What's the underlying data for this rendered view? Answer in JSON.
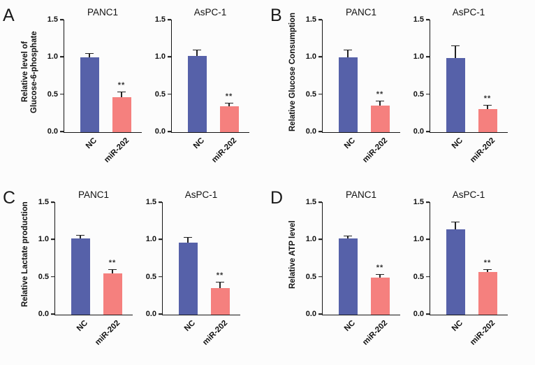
{
  "figure": {
    "background": "#fcfcfc"
  },
  "colors": {
    "nc_bar": "#5661A9",
    "treated_bar": "#F5807E",
    "error_bar": "#222222",
    "axis": "#141414"
  },
  "chart_data": {
    "type": "bar",
    "ylim": [
      0,
      1.5
    ],
    "yticks": [
      0,
      0.5,
      1.0,
      1.5
    ],
    "categories": [
      "NC",
      "miR-202"
    ],
    "grid": false,
    "legend": "none",
    "panels": [
      {
        "label": "A",
        "ylabel": [
          "Relative level of",
          "Glucose-6-phosphate"
        ],
        "charts": [
          {
            "title": "PANC1",
            "values": [
              1.0,
              0.47
            ],
            "errors": [
              0.06,
              0.07
            ],
            "significance": [
              null,
              "**"
            ]
          },
          {
            "title": "AsPC-1",
            "values": [
              1.02,
              0.35
            ],
            "errors": [
              0.09,
              0.04
            ],
            "significance": [
              null,
              "**"
            ]
          }
        ]
      },
      {
        "label": "B",
        "ylabel": [
          "Relative Glucose Consumption"
        ],
        "charts": [
          {
            "title": "PANC1",
            "values": [
              1.0,
              0.36
            ],
            "errors": [
              0.11,
              0.06
            ],
            "significance": [
              null,
              "**"
            ]
          },
          {
            "title": "AsPC-1",
            "values": [
              0.99,
              0.31
            ],
            "errors": [
              0.17,
              0.06
            ],
            "significance": [
              null,
              "**"
            ]
          }
        ]
      },
      {
        "label": "C",
        "ylabel": [
          "Relative Lactate production"
        ],
        "charts": [
          {
            "title": "PANC1",
            "values": [
              1.02,
              0.55
            ],
            "errors": [
              0.05,
              0.06
            ],
            "significance": [
              null,
              "**"
            ]
          },
          {
            "title": "AsPC-1",
            "values": [
              0.97,
              0.36
            ],
            "errors": [
              0.07,
              0.08
            ],
            "significance": [
              null,
              "**"
            ]
          }
        ]
      },
      {
        "label": "D",
        "ylabel": [
          "Relative ATP level"
        ],
        "charts": [
          {
            "title": "PANC1",
            "values": [
              1.02,
              0.5
            ],
            "errors": [
              0.04,
              0.04
            ],
            "significance": [
              null,
              "**"
            ]
          },
          {
            "title": "AsPC-1",
            "values": [
              1.14,
              0.57
            ],
            "errors": [
              0.11,
              0.04
            ],
            "significance": [
              null,
              "**"
            ]
          }
        ]
      }
    ]
  }
}
